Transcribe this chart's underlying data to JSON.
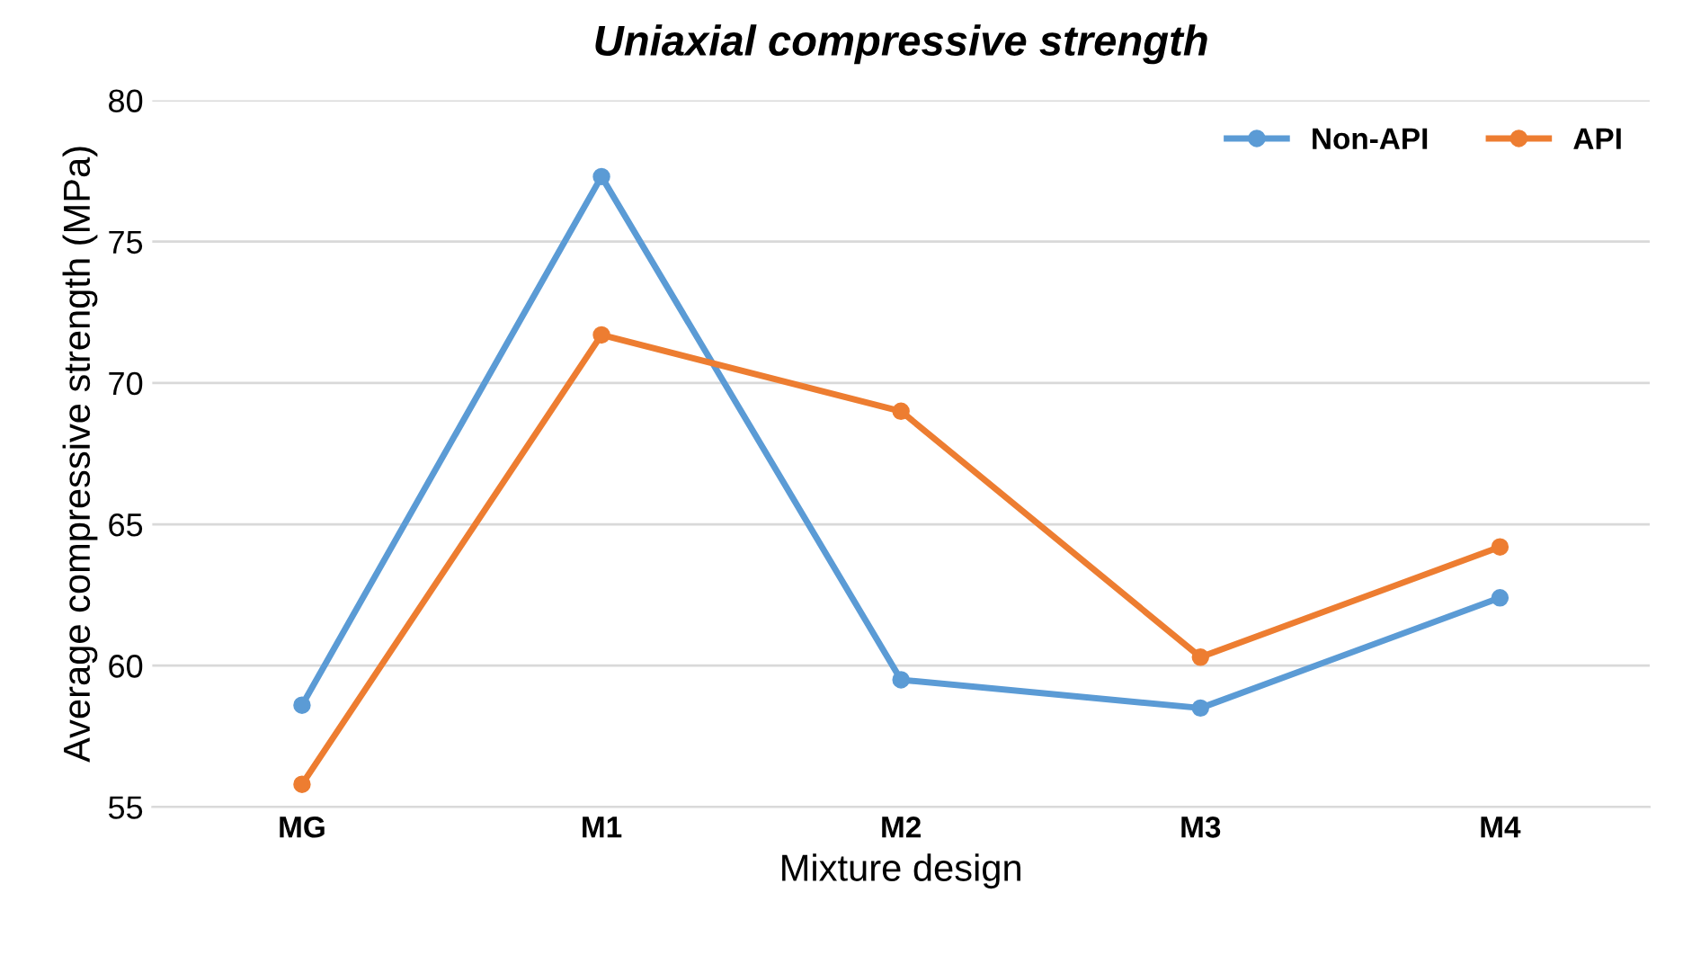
{
  "chart_data": {
    "type": "line",
    "title": "Uniaxial compressive strength",
    "xlabel": "Mixture design",
    "ylabel": "Average compressive strength (MPa)",
    "categories": [
      "MG",
      "M1",
      "M2",
      "M3",
      "M4"
    ],
    "series": [
      {
        "name": "Non-API",
        "color": "#5b9bd5",
        "values": [
          58.6,
          77.3,
          59.5,
          58.5,
          62.4
        ]
      },
      {
        "name": "API",
        "color": "#ed7d31",
        "values": [
          55.8,
          71.7,
          69.0,
          60.3,
          64.2
        ]
      }
    ],
    "ylim": [
      55,
      80
    ],
    "yticks": [
      55,
      60,
      65,
      70,
      75,
      80
    ],
    "grid": "y",
    "legend": "top right",
    "marker": "circle",
    "line_style": "solid"
  }
}
